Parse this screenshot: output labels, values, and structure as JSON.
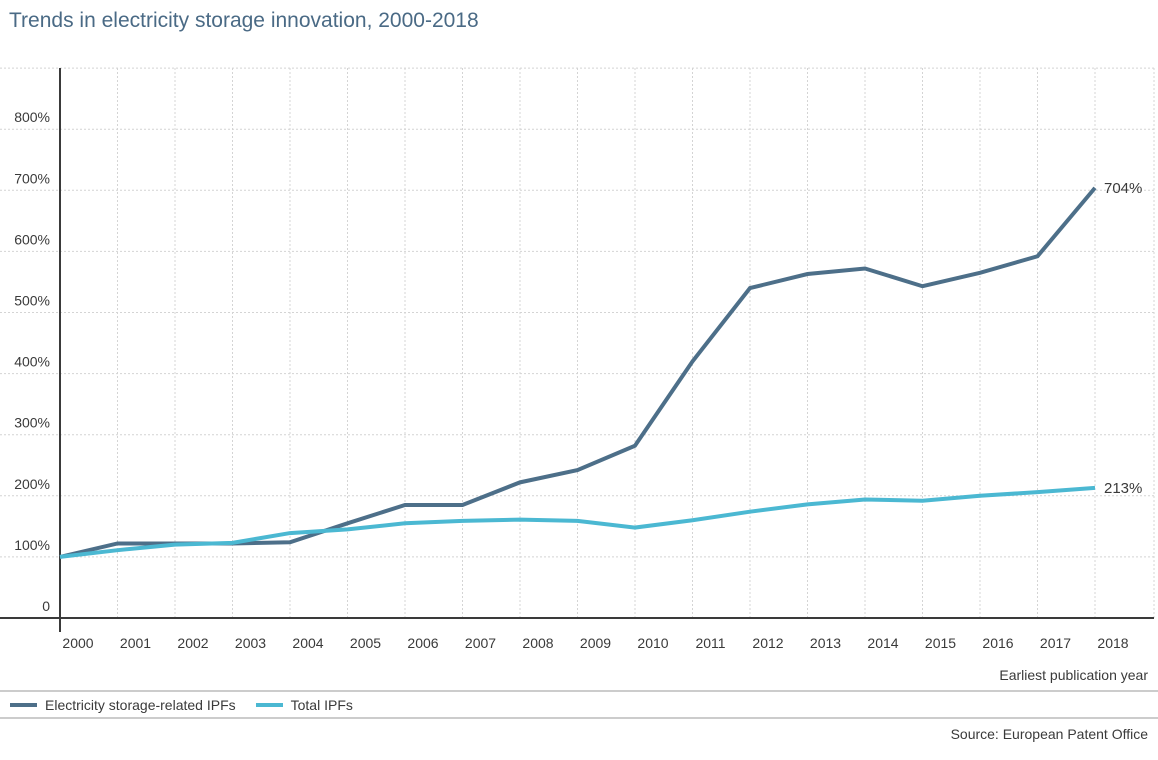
{
  "chart_data": {
    "type": "line",
    "title": "Trends in electricity storage innovation, 2000-2018",
    "xlabel": "Earliest publication year",
    "ylabel": "",
    "categories": [
      "2000",
      "2001",
      "2002",
      "2003",
      "2004",
      "2005",
      "2006",
      "2007",
      "2008",
      "2009",
      "2010",
      "2011",
      "2012",
      "2013",
      "2014",
      "2015",
      "2016",
      "2017",
      "2018"
    ],
    "yticks": [
      "0",
      "100%",
      "200%",
      "300%",
      "400%",
      "500%",
      "600%",
      "700%",
      "800%"
    ],
    "ylim": [
      0,
      900
    ],
    "grid": true,
    "legend_position": "bottom-left",
    "series": [
      {
        "name": "Electricity storage-related IPFs",
        "color": "#4d6f89",
        "values": [
          100,
          122,
          122,
          122,
          124,
          155,
          185,
          185,
          222,
          242,
          282,
          420,
          540,
          563,
          572,
          543,
          565,
          592,
          704
        ],
        "end_label": "704%"
      },
      {
        "name": "Total IPFs",
        "color": "#4bb8d2",
        "values": [
          100,
          111,
          120,
          123,
          139,
          145,
          155,
          159,
          161,
          159,
          148,
          160,
          174,
          186,
          194,
          192,
          200,
          206,
          213
        ],
        "end_label": "213%"
      }
    ]
  },
  "footer": {
    "source": "Source: European Patent Office"
  }
}
